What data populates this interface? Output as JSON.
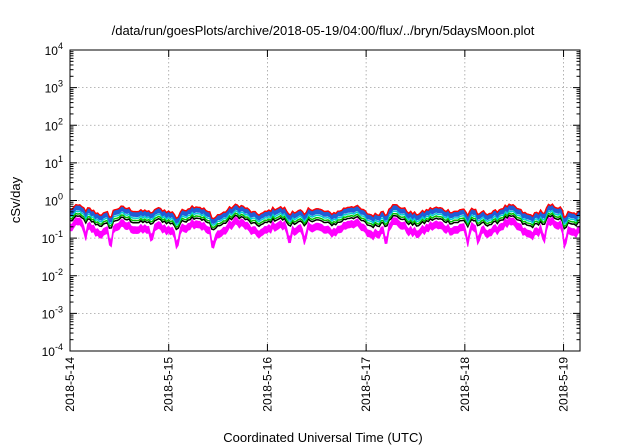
{
  "chart_data": {
    "type": "line",
    "title": "/data/run/goesPlots/archive/2018-05-19/04:00/flux/../bryn/5daysMoon.plot",
    "xlabel": "Coordinated Universal Time (UTC)",
    "ylabel": "cSv/day",
    "yscale": "log",
    "ylim": [
      0.0001,
      10000
    ],
    "xlim": [
      "2018-05-14 00:00",
      "2018-05-19 04:00"
    ],
    "grid": true,
    "x_tick_labels": [
      "2018-5-14",
      "2018-5-15",
      "2018-5-16",
      "2018-5-17",
      "2018-5-18",
      "2018-5-19"
    ],
    "y_tick_labels": [
      {
        "base": "10",
        "exp": "-4"
      },
      {
        "base": "10",
        "exp": "-3"
      },
      {
        "base": "10",
        "exp": "-2"
      },
      {
        "base": "10",
        "exp": "-1"
      },
      {
        "base": "10",
        "exp": "0"
      },
      {
        "base": "10",
        "exp": "1"
      },
      {
        "base": "10",
        "exp": "2"
      },
      {
        "base": "10",
        "exp": "3"
      },
      {
        "base": "10",
        "exp": "4"
      }
    ],
    "series": [
      {
        "color": "#ff00ff",
        "role": "lower-band",
        "typical": 0.19
      },
      {
        "color": "#000000",
        "typical": 0.28
      },
      {
        "color": "#00c000",
        "typical": 0.32
      },
      {
        "color": "#00d0d0",
        "typical": 0.37
      },
      {
        "color": "#ff0000",
        "typical": 0.55
      },
      {
        "color": "#1e5fd8",
        "role": "upper-band",
        "typical": 0.5
      }
    ]
  }
}
